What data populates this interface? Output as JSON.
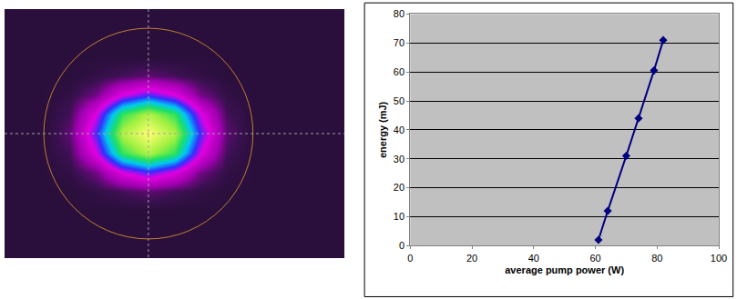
{
  "chart_data": [
    {
      "type": "heatmap",
      "tick_labels": false,
      "z": [
        [
          0,
          0,
          0,
          0,
          0,
          0,
          0,
          0,
          0,
          0,
          0,
          0,
          0
        ],
        [
          0,
          0,
          0,
          0,
          0,
          0,
          0,
          0,
          0,
          0,
          0,
          0,
          0
        ],
        [
          0,
          0,
          0,
          0,
          0,
          0,
          0,
          0,
          0,
          0,
          0,
          0,
          0
        ],
        [
          0,
          0,
          0,
          0.02,
          0.05,
          0.08,
          0.05,
          0.02,
          0,
          0,
          0,
          0,
          0
        ],
        [
          0,
          0,
          0.02,
          0.1,
          0.3,
          0.4,
          0.3,
          0.1,
          0.02,
          0,
          0,
          0,
          0
        ],
        [
          0,
          0,
          0.05,
          0.3,
          0.7,
          0.85,
          0.7,
          0.3,
          0.05,
          0,
          0,
          0,
          0
        ],
        [
          0,
          0,
          0.08,
          0.4,
          0.85,
          1.0,
          0.85,
          0.4,
          0.08,
          0,
          0,
          0,
          0
        ],
        [
          0,
          0,
          0.05,
          0.3,
          0.7,
          0.85,
          0.7,
          0.3,
          0.05,
          0,
          0,
          0,
          0
        ],
        [
          0,
          0,
          0.02,
          0.1,
          0.3,
          0.4,
          0.3,
          0.1,
          0.02,
          0,
          0,
          0,
          0
        ],
        [
          0,
          0,
          0,
          0.02,
          0.05,
          0.08,
          0.05,
          0.02,
          0,
          0,
          0,
          0,
          0
        ],
        [
          0,
          0,
          0,
          0,
          0,
          0,
          0,
          0,
          0,
          0,
          0,
          0,
          0
        ],
        [
          0,
          0,
          0,
          0,
          0,
          0,
          0,
          0,
          0,
          0,
          0,
          0,
          0
        ],
        [
          0,
          0,
          0,
          0,
          0,
          0,
          0,
          0,
          0,
          0,
          0,
          0,
          0
        ]
      ]
    },
    {
      "type": "line",
      "x_label": "average pump power (W)",
      "y_label": "energy (mJ)",
      "x": [
        61,
        64,
        70,
        74,
        79,
        82
      ],
      "values": [
        2,
        12,
        31,
        44,
        60.5,
        71
      ],
      "color": "#000080",
      "marker": "diamond",
      "xlim": [
        0,
        100
      ],
      "xticks": [
        0,
        20,
        40,
        60,
        80,
        100
      ],
      "ylim": [
        0,
        80
      ],
      "yticks": [
        0,
        10,
        20,
        30,
        40,
        50,
        60,
        70,
        80
      ],
      "grid": true
    }
  ]
}
